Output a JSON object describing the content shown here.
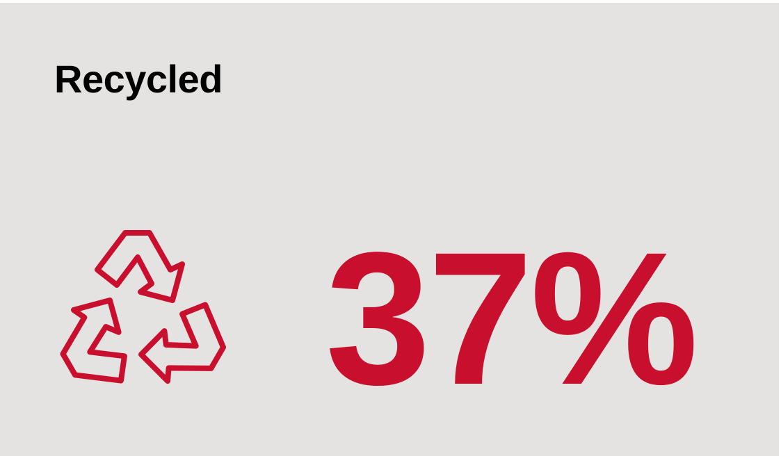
{
  "card": {
    "title": "Recycled",
    "stat": "37%"
  }
}
